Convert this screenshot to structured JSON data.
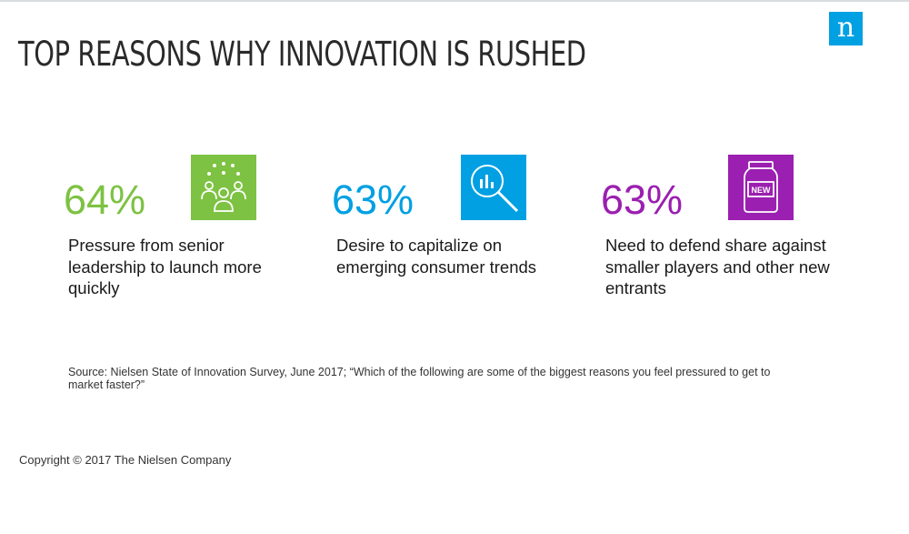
{
  "logo": {
    "text": "n",
    "icon": "nielsen-logo",
    "color": "#00a0e3"
  },
  "title": "TOP REASONS WHY INNOVATION IS RUSHED",
  "stats": [
    {
      "value": "64%",
      "description": "Pressure from senior leadership to launch more quickly",
      "color": "#7dc242",
      "icon": "people-group-icon"
    },
    {
      "value": "63%",
      "description": "Desire to capitalize on emerging consumer trends",
      "color": "#00a0e3",
      "icon": "magnifier-chart-icon"
    },
    {
      "value": "63%",
      "description": "Need to defend share against smaller players and other new entrants",
      "color": "#9b1fb0",
      "icon": "new-jar-icon",
      "icon_label": "NEW"
    }
  ],
  "source": "Source: Nielsen State of Innovation Survey, June 2017; “Which of the following are some of the biggest reasons you feel pressured to get to market faster?”",
  "copyright": "Copyright © 2017 The Nielsen Company"
}
